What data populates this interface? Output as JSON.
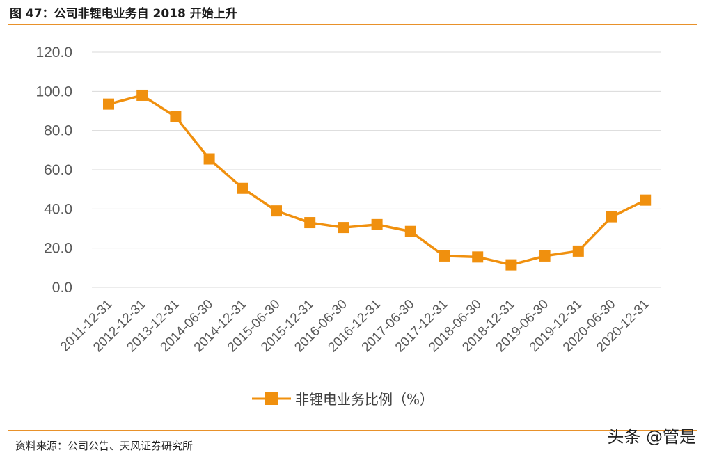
{
  "header": {
    "title": "图 47：公司非锂电业务自 2018 开始上升"
  },
  "footer": {
    "source": "资料来源：公司公告、天风证券研究所",
    "watermark": "头条 @管是"
  },
  "colors": {
    "series": "#f0900e",
    "grid": "#d9d9d9",
    "rule": "#e8912a"
  },
  "chart_data": {
    "type": "line",
    "categories": [
      "2011-12-31",
      "2012-12-31",
      "2013-12-31",
      "2014-06-30",
      "2014-12-31",
      "2015-06-30",
      "2015-12-31",
      "2016-06-30",
      "2016-12-31",
      "2017-06-30",
      "2017-12-31",
      "2018-06-30",
      "2018-12-31",
      "2019-06-30",
      "2019-12-31",
      "2020-06-30",
      "2020-12-31"
    ],
    "series": [
      {
        "name": "非锂电业务比例（%）",
        "values": [
          93.5,
          98.0,
          87.0,
          65.5,
          50.5,
          39.0,
          33.0,
          30.5,
          32.0,
          28.5,
          16.0,
          15.5,
          11.5,
          16.0,
          18.5,
          36.0,
          44.5
        ]
      }
    ],
    "yticks": [
      "0.0",
      "20.0",
      "40.0",
      "60.0",
      "80.0",
      "100.0",
      "120.0"
    ],
    "ylim": [
      0,
      120
    ],
    "grid": true,
    "legend": "bottom-center",
    "marker": "square"
  }
}
